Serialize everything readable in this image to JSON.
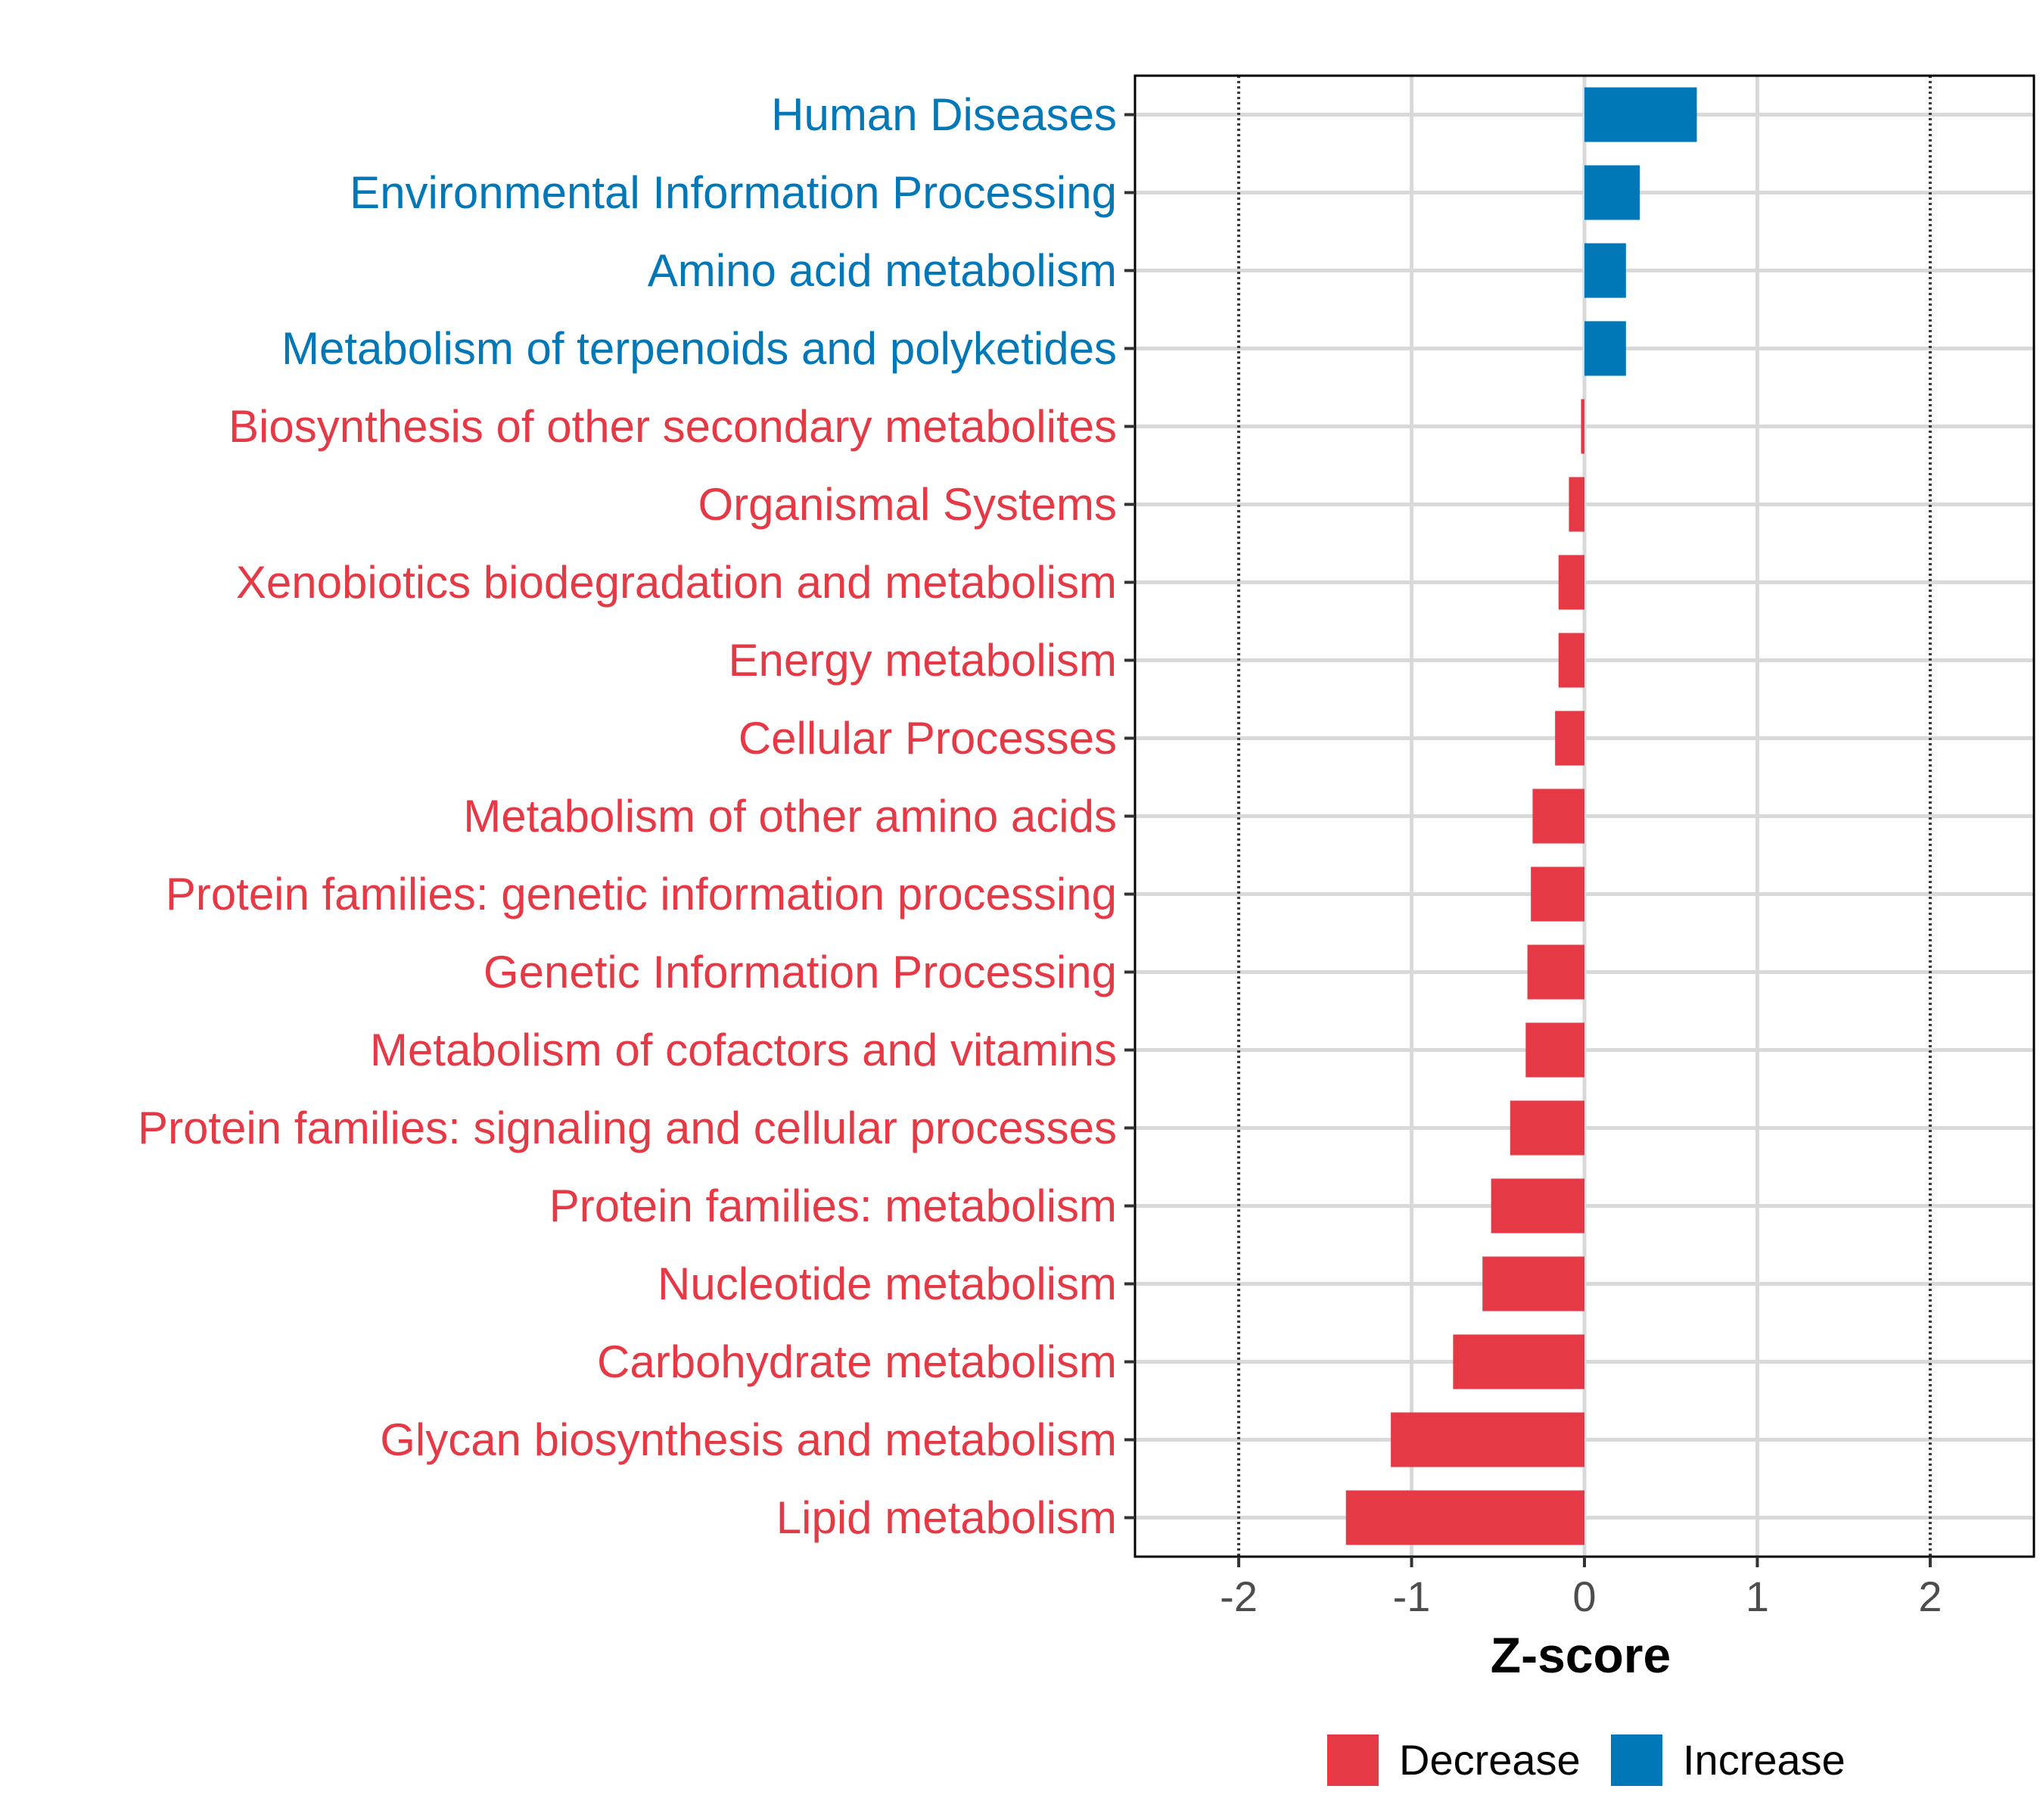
{
  "chart_data": {
    "type": "bar",
    "orientation": "horizontal",
    "title": "",
    "xlabel": "Z-score",
    "ylabel": "",
    "xlim": [
      -2.6,
      2.6
    ],
    "xticks": [
      -2,
      -1,
      0,
      1,
      2
    ],
    "xtick_labels": [
      "-2",
      "-1",
      "0",
      "1",
      "2"
    ],
    "reference_lines": [
      -2,
      2
    ],
    "grid": true,
    "legend_position": "bottom",
    "colors": {
      "Decrease": "#E63946",
      "Increase": "#0077B6"
    },
    "legend": [
      {
        "key": "Decrease",
        "label": "Decrease"
      },
      {
        "key": "Increase",
        "label": "Increase"
      }
    ],
    "categories": [
      "Human Diseases",
      "Environmental Information Processing",
      "Amino acid metabolism",
      "Metabolism of terpenoids and polyketides",
      "Biosynthesis of other secondary metabolites",
      "Organismal Systems",
      "Xenobiotics biodegradation and metabolism",
      "Energy metabolism",
      "Cellular Processes",
      "Metabolism of other amino acids",
      "Protein families: genetic information processing",
      "Genetic Information Processing",
      "Metabolism of cofactors and vitamins",
      "Protein families: signaling and cellular processes",
      "Protein families: metabolism",
      "Nucleotide metabolism",
      "Carbohydrate metabolism",
      "Glycan biosynthesis and metabolism",
      "Lipid metabolism"
    ],
    "values": [
      0.65,
      0.32,
      0.24,
      0.24,
      -0.02,
      -0.09,
      -0.15,
      -0.15,
      -0.17,
      -0.3,
      -0.31,
      -0.33,
      -0.34,
      -0.43,
      -0.54,
      -0.59,
      -0.76,
      -1.12,
      -1.38
    ],
    "groups": [
      "Increase",
      "Increase",
      "Increase",
      "Increase",
      "Decrease",
      "Decrease",
      "Decrease",
      "Decrease",
      "Decrease",
      "Decrease",
      "Decrease",
      "Decrease",
      "Decrease",
      "Decrease",
      "Decrease",
      "Decrease",
      "Decrease",
      "Decrease",
      "Decrease"
    ]
  }
}
